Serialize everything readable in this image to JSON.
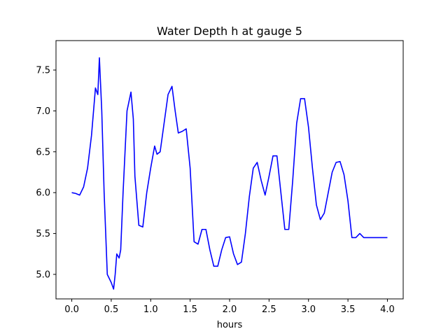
{
  "chart_data": {
    "type": "line",
    "title": "Water Depth h at gauge 5",
    "xlabel": "hours",
    "ylabel": "",
    "xlim": [
      -0.2,
      4.2
    ],
    "ylim": [
      4.7,
      7.86
    ],
    "xticks": [
      "0.0",
      "0.5",
      "1.0",
      "1.5",
      "2.0",
      "2.5",
      "3.0",
      "3.5",
      "4.0"
    ],
    "yticks": [
      "5.0",
      "5.5",
      "6.0",
      "6.5",
      "7.0",
      "7.5"
    ],
    "grid": false,
    "series": [
      {
        "color": "#0000ff",
        "x": [
          0.0,
          0.05,
          0.1,
          0.15,
          0.2,
          0.25,
          0.3,
          0.33,
          0.35,
          0.38,
          0.41,
          0.45,
          0.5,
          0.53,
          0.55,
          0.57,
          0.6,
          0.62,
          0.65,
          0.7,
          0.75,
          0.78,
          0.8,
          0.85,
          0.9,
          0.95,
          1.0,
          1.05,
          1.08,
          1.12,
          1.17,
          1.22,
          1.27,
          1.31,
          1.35,
          1.4,
          1.45,
          1.5,
          1.55,
          1.6,
          1.65,
          1.7,
          1.75,
          1.8,
          1.85,
          1.9,
          1.95,
          2.0,
          2.05,
          2.1,
          2.15,
          2.2,
          2.25,
          2.3,
          2.35,
          2.4,
          2.45,
          2.5,
          2.55,
          2.6,
          2.65,
          2.7,
          2.75,
          2.8,
          2.85,
          2.9,
          2.95,
          3.0,
          3.05,
          3.1,
          3.15,
          3.2,
          3.25,
          3.3,
          3.35,
          3.4,
          3.45,
          3.5,
          3.55,
          3.6,
          3.65,
          3.7,
          3.75,
          3.8,
          3.85,
          3.9,
          3.95,
          4.0
        ],
        "y": [
          6.0,
          5.99,
          5.97,
          6.07,
          6.3,
          6.7,
          7.28,
          7.2,
          7.65,
          7.0,
          6.0,
          5.0,
          4.9,
          4.82,
          5.0,
          5.25,
          5.2,
          5.3,
          6.0,
          7.0,
          7.23,
          6.9,
          6.2,
          5.6,
          5.58,
          6.0,
          6.3,
          6.57,
          6.47,
          6.5,
          6.85,
          7.2,
          7.3,
          7.0,
          6.73,
          6.75,
          6.78,
          6.3,
          5.4,
          5.37,
          5.55,
          5.55,
          5.3,
          5.1,
          5.1,
          5.3,
          5.45,
          5.46,
          5.25,
          5.12,
          5.15,
          5.5,
          5.95,
          6.3,
          6.37,
          6.15,
          5.97,
          6.2,
          6.45,
          6.45,
          6.0,
          5.55,
          5.55,
          6.15,
          6.85,
          7.15,
          7.15,
          6.8,
          6.3,
          5.85,
          5.67,
          5.75,
          6.0,
          6.25,
          6.37,
          6.38,
          6.22,
          5.9,
          5.45,
          5.45,
          5.5,
          5.45,
          5.45,
          5.45,
          5.45,
          5.45,
          5.45,
          5.45
        ]
      }
    ]
  }
}
